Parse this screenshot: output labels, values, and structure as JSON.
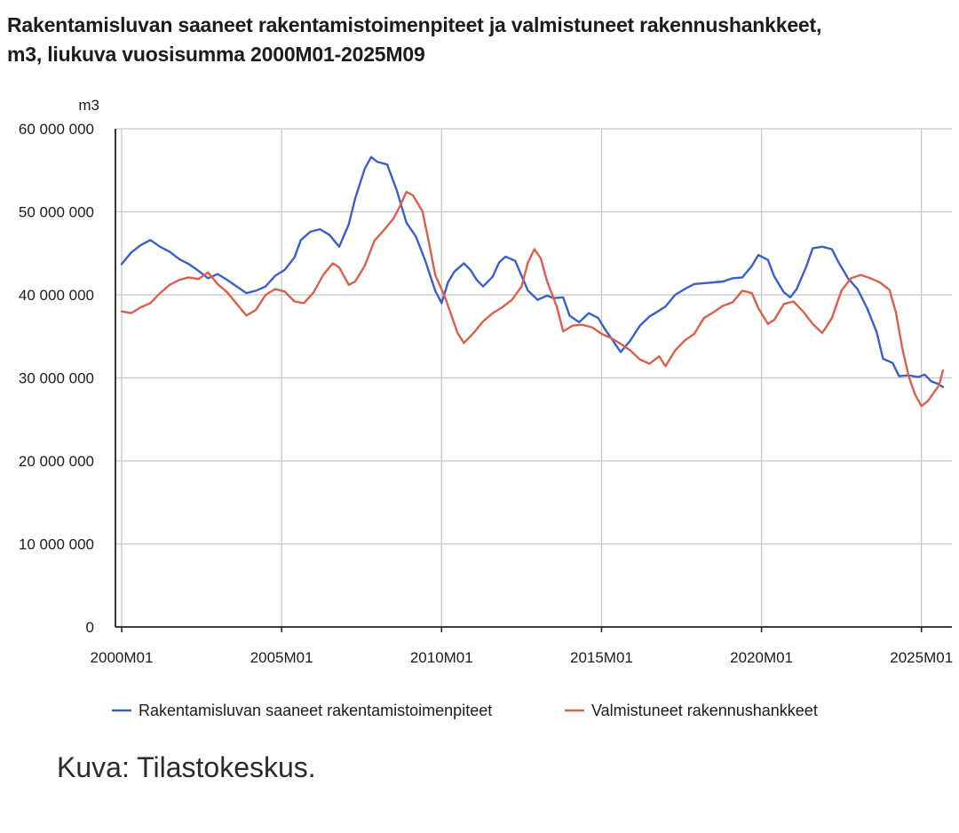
{
  "title": {
    "line1": "Rakentamisluvan saaneet rakentamistoimenpiteet ja valmistuneet rakennushankkeet,",
    "line2": "m3, liukuva vuosisumma 2000M01-2025M09"
  },
  "caption": "Kuva: Tilastokeskus.",
  "colors": {
    "blue": "#3a5fcd",
    "red": "#d9604b",
    "grid": "#c8c8c8",
    "axis": "#222222"
  },
  "chart_data": {
    "type": "line",
    "unit_label": "m3",
    "ylim": [
      0,
      60000000
    ],
    "xlim": [
      2000.0,
      2026.0
    ],
    "y_ticks": [
      0,
      10000000,
      20000000,
      30000000,
      40000000,
      50000000,
      60000000
    ],
    "y_tick_labels": [
      "0",
      "10 000 000",
      "20 000 000",
      "30 000 000",
      "40 000 000",
      "50 000 000",
      "60 000 000"
    ],
    "x_ticks": [
      2000,
      2005,
      2010,
      2015,
      2020,
      2025
    ],
    "x_tick_labels": [
      "2000M01",
      "2005M01",
      "2010M01",
      "2015M01",
      "2020M01",
      "2025M01"
    ],
    "grid": true,
    "legend_position": "bottom",
    "series": [
      {
        "name": "Rakentamisluvan saaneet rakentamistoimenpiteet",
        "color": "#3a5fcd",
        "points": [
          [
            2000.0,
            43700000
          ],
          [
            2000.3,
            45100000
          ],
          [
            2000.6,
            46000000
          ],
          [
            2000.9,
            46600000
          ],
          [
            2001.2,
            45800000
          ],
          [
            2001.5,
            45200000
          ],
          [
            2001.8,
            44300000
          ],
          [
            2002.1,
            43700000
          ],
          [
            2002.4,
            42900000
          ],
          [
            2002.7,
            42000000
          ],
          [
            2003.0,
            42500000
          ],
          [
            2003.3,
            41800000
          ],
          [
            2003.6,
            41000000
          ],
          [
            2003.9,
            40200000
          ],
          [
            2004.2,
            40500000
          ],
          [
            2004.5,
            41000000
          ],
          [
            2004.8,
            42300000
          ],
          [
            2005.1,
            43000000
          ],
          [
            2005.4,
            44500000
          ],
          [
            2005.6,
            46600000
          ],
          [
            2005.9,
            47600000
          ],
          [
            2006.2,
            47900000
          ],
          [
            2006.5,
            47200000
          ],
          [
            2006.8,
            45800000
          ],
          [
            2007.1,
            48500000
          ],
          [
            2007.3,
            51600000
          ],
          [
            2007.6,
            55200000
          ],
          [
            2007.8,
            56600000
          ],
          [
            2008.0,
            56000000
          ],
          [
            2008.3,
            55700000
          ],
          [
            2008.6,
            52600000
          ],
          [
            2008.9,
            48700000
          ],
          [
            2009.2,
            47000000
          ],
          [
            2009.5,
            44000000
          ],
          [
            2009.8,
            40500000
          ],
          [
            2010.0,
            39000000
          ],
          [
            2010.2,
            41500000
          ],
          [
            2010.4,
            42800000
          ],
          [
            2010.7,
            43800000
          ],
          [
            2010.9,
            43000000
          ],
          [
            2011.1,
            41800000
          ],
          [
            2011.3,
            41000000
          ],
          [
            2011.6,
            42200000
          ],
          [
            2011.8,
            43900000
          ],
          [
            2012.0,
            44600000
          ],
          [
            2012.3,
            44100000
          ],
          [
            2012.5,
            42300000
          ],
          [
            2012.7,
            40500000
          ],
          [
            2013.0,
            39400000
          ],
          [
            2013.3,
            39900000
          ],
          [
            2013.5,
            39600000
          ],
          [
            2013.8,
            39700000
          ],
          [
            2014.0,
            37500000
          ],
          [
            2014.3,
            36700000
          ],
          [
            2014.6,
            37800000
          ],
          [
            2014.9,
            37200000
          ],
          [
            2015.1,
            35900000
          ],
          [
            2015.3,
            34800000
          ],
          [
            2015.6,
            33100000
          ],
          [
            2015.9,
            34500000
          ],
          [
            2016.2,
            36300000
          ],
          [
            2016.5,
            37400000
          ],
          [
            2016.8,
            38100000
          ],
          [
            2017.0,
            38600000
          ],
          [
            2017.3,
            40000000
          ],
          [
            2017.6,
            40700000
          ],
          [
            2017.9,
            41300000
          ],
          [
            2018.2,
            41400000
          ],
          [
            2018.5,
            41500000
          ],
          [
            2018.8,
            41600000
          ],
          [
            2019.1,
            42000000
          ],
          [
            2019.4,
            42100000
          ],
          [
            2019.7,
            43500000
          ],
          [
            2019.9,
            44800000
          ],
          [
            2020.2,
            44200000
          ],
          [
            2020.4,
            42200000
          ],
          [
            2020.7,
            40300000
          ],
          [
            2020.9,
            39700000
          ],
          [
            2021.1,
            40700000
          ],
          [
            2021.4,
            43400000
          ],
          [
            2021.6,
            45600000
          ],
          [
            2021.9,
            45800000
          ],
          [
            2022.2,
            45500000
          ],
          [
            2022.4,
            44000000
          ],
          [
            2022.7,
            42000000
          ],
          [
            2023.0,
            40700000
          ],
          [
            2023.3,
            38400000
          ],
          [
            2023.6,
            35500000
          ],
          [
            2023.8,
            32300000
          ],
          [
            2024.1,
            31800000
          ],
          [
            2024.3,
            30200000
          ],
          [
            2024.6,
            30300000
          ],
          [
            2024.9,
            30100000
          ],
          [
            2025.1,
            30400000
          ],
          [
            2025.3,
            29600000
          ],
          [
            2025.5,
            29300000
          ],
          [
            2025.67,
            28900000
          ]
        ]
      },
      {
        "name": "Valmistuneet rakennushankkeet",
        "color": "#d9604b",
        "points": [
          [
            2000.0,
            38000000
          ],
          [
            2000.3,
            37800000
          ],
          [
            2000.6,
            38500000
          ],
          [
            2000.9,
            39000000
          ],
          [
            2001.2,
            40200000
          ],
          [
            2001.5,
            41200000
          ],
          [
            2001.8,
            41800000
          ],
          [
            2002.1,
            42100000
          ],
          [
            2002.4,
            41900000
          ],
          [
            2002.7,
            42700000
          ],
          [
            2003.0,
            41300000
          ],
          [
            2003.3,
            40300000
          ],
          [
            2003.6,
            38900000
          ],
          [
            2003.9,
            37500000
          ],
          [
            2004.2,
            38200000
          ],
          [
            2004.5,
            40000000
          ],
          [
            2004.8,
            40700000
          ],
          [
            2005.1,
            40400000
          ],
          [
            2005.4,
            39200000
          ],
          [
            2005.7,
            39000000
          ],
          [
            2006.0,
            40300000
          ],
          [
            2006.3,
            42400000
          ],
          [
            2006.6,
            43800000
          ],
          [
            2006.8,
            43300000
          ],
          [
            2007.1,
            41200000
          ],
          [
            2007.3,
            41600000
          ],
          [
            2007.6,
            43500000
          ],
          [
            2007.9,
            46500000
          ],
          [
            2008.2,
            47800000
          ],
          [
            2008.5,
            49200000
          ],
          [
            2008.7,
            50700000
          ],
          [
            2008.9,
            52400000
          ],
          [
            2009.1,
            52000000
          ],
          [
            2009.4,
            50100000
          ],
          [
            2009.6,
            46400000
          ],
          [
            2009.8,
            42400000
          ],
          [
            2010.1,
            39800000
          ],
          [
            2010.3,
            37600000
          ],
          [
            2010.5,
            35400000
          ],
          [
            2010.7,
            34200000
          ],
          [
            2011.0,
            35400000
          ],
          [
            2011.3,
            36800000
          ],
          [
            2011.6,
            37800000
          ],
          [
            2011.9,
            38500000
          ],
          [
            2012.2,
            39400000
          ],
          [
            2012.5,
            41000000
          ],
          [
            2012.7,
            43900000
          ],
          [
            2012.9,
            45500000
          ],
          [
            2013.1,
            44400000
          ],
          [
            2013.3,
            41600000
          ],
          [
            2013.6,
            38600000
          ],
          [
            2013.8,
            35600000
          ],
          [
            2014.1,
            36300000
          ],
          [
            2014.4,
            36400000
          ],
          [
            2014.7,
            36100000
          ],
          [
            2015.0,
            35300000
          ],
          [
            2015.3,
            34800000
          ],
          [
            2015.6,
            34100000
          ],
          [
            2015.9,
            33300000
          ],
          [
            2016.2,
            32200000
          ],
          [
            2016.5,
            31700000
          ],
          [
            2016.8,
            32600000
          ],
          [
            2017.0,
            31400000
          ],
          [
            2017.3,
            33300000
          ],
          [
            2017.6,
            34500000
          ],
          [
            2017.9,
            35300000
          ],
          [
            2018.2,
            37200000
          ],
          [
            2018.5,
            37900000
          ],
          [
            2018.8,
            38700000
          ],
          [
            2019.1,
            39100000
          ],
          [
            2019.4,
            40500000
          ],
          [
            2019.7,
            40200000
          ],
          [
            2019.9,
            38400000
          ],
          [
            2020.2,
            36500000
          ],
          [
            2020.4,
            37000000
          ],
          [
            2020.7,
            38900000
          ],
          [
            2021.0,
            39200000
          ],
          [
            2021.3,
            38000000
          ],
          [
            2021.6,
            36500000
          ],
          [
            2021.9,
            35400000
          ],
          [
            2022.2,
            37200000
          ],
          [
            2022.5,
            40500000
          ],
          [
            2022.8,
            42000000
          ],
          [
            2023.1,
            42400000
          ],
          [
            2023.4,
            42000000
          ],
          [
            2023.7,
            41500000
          ],
          [
            2024.0,
            40600000
          ],
          [
            2024.2,
            37900000
          ],
          [
            2024.4,
            33600000
          ],
          [
            2024.6,
            30200000
          ],
          [
            2024.8,
            28000000
          ],
          [
            2025.0,
            26600000
          ],
          [
            2025.2,
            27200000
          ],
          [
            2025.4,
            28300000
          ],
          [
            2025.55,
            29100000
          ],
          [
            2025.67,
            30900000
          ]
        ]
      }
    ]
  }
}
